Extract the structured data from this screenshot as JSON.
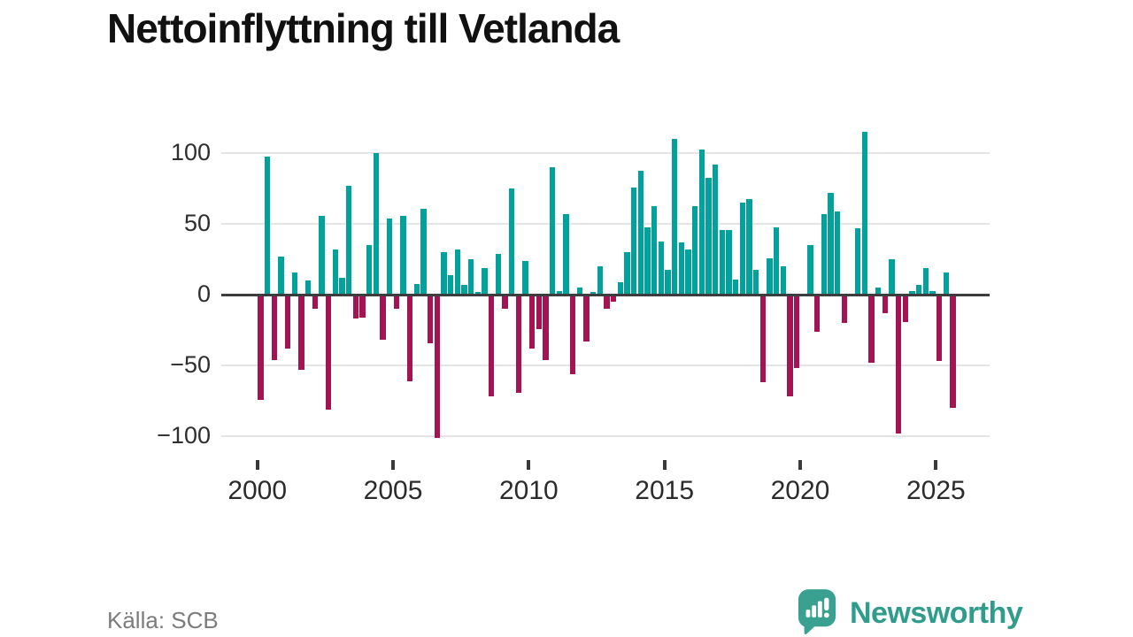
{
  "title": "Nettoinflyttning till Vetlanda",
  "source": "Källa: SCB",
  "brand": {
    "name": "Newsworthy"
  },
  "colors": {
    "positive_bar": "#00a29b",
    "negative_bar": "#a41352",
    "gridline": "#e4e4e4",
    "zero_line": "#3d3d3d",
    "brand_teal": "#2f9c8c",
    "title_text": "#111111",
    "axis_text": "#2b2b2b",
    "source_text": "#7c7c7c"
  },
  "chart_data": {
    "type": "bar",
    "title": "Nettoinflyttning till Vetlanda",
    "frequency": "quarterly",
    "start_year": 2000,
    "start_quarter": 1,
    "end_year": 2025,
    "end_quarter": 3,
    "x_ticks": [
      2000,
      2005,
      2010,
      2015,
      2020,
      2025
    ],
    "x_tick_labels": [
      "2000",
      "2005",
      "2010",
      "2015",
      "2020",
      "2025"
    ],
    "y_ticks": [
      100,
      50,
      0,
      -50,
      -100
    ],
    "y_tick_labels": [
      "100",
      "50",
      "0",
      "−50",
      "−100"
    ],
    "ylim": [
      -115,
      120
    ],
    "grid": "horizontal-only",
    "legend": "none",
    "values": [
      -74,
      98,
      -46,
      27,
      -38,
      16,
      -53,
      10,
      -10,
      56,
      -81,
      32,
      12,
      77,
      -17,
      -16,
      35,
      100,
      -32,
      54,
      -10,
      56,
      -61,
      8,
      61,
      -34,
      -101,
      30,
      14,
      32,
      7,
      25,
      2,
      19,
      -72,
      29,
      -10,
      75,
      -69,
      24,
      -38,
      -24,
      -46,
      90,
      3,
      57,
      -56,
      5,
      -33,
      2,
      20,
      -10,
      -5,
      9,
      30,
      76,
      88,
      48,
      63,
      38,
      18,
      110,
      37,
      32,
      63,
      103,
      83,
      92,
      46,
      46,
      11,
      65,
      68,
      18,
      -62,
      26,
      48,
      20,
      -72,
      -52,
      0,
      35,
      -26,
      57,
      72,
      59,
      -20,
      0,
      47,
      115,
      -48,
      5,
      -13,
      25,
      -98,
      -19,
      3,
      7,
      19,
      3,
      -47,
      16,
      -80
    ]
  }
}
